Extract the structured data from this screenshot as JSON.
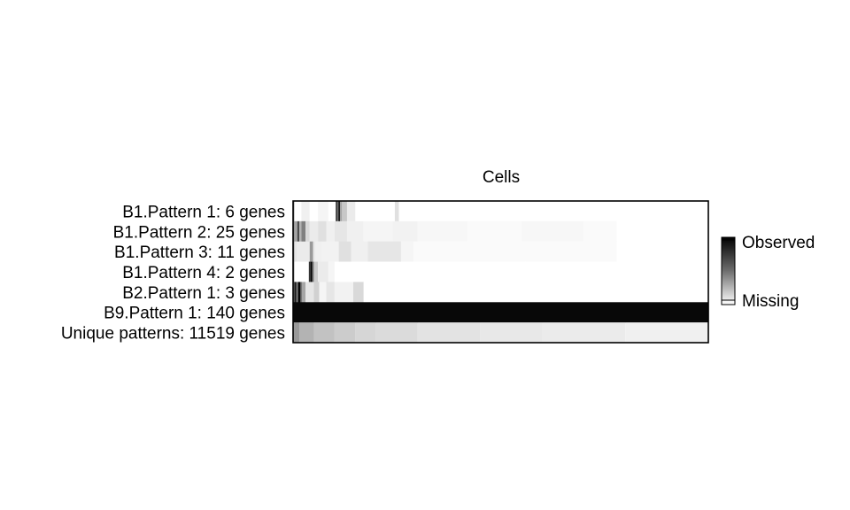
{
  "chart_data": {
    "type": "heatmap",
    "title": "",
    "xlabel": "Cells",
    "ylabel": "",
    "rows": [
      {
        "label": "B1.Pattern 1: 6 genes",
        "bands": [
          [
            0.0,
            0.003,
            0.55
          ],
          [
            0.003,
            0.02,
            0.0
          ],
          [
            0.02,
            0.04,
            0.06
          ],
          [
            0.04,
            0.06,
            0.0
          ],
          [
            0.06,
            0.085,
            0.04
          ],
          [
            0.085,
            0.103,
            0.0
          ],
          [
            0.103,
            0.106,
            0.95
          ],
          [
            0.106,
            0.109,
            0.55
          ],
          [
            0.109,
            0.113,
            0.9
          ],
          [
            0.113,
            0.118,
            0.35
          ],
          [
            0.118,
            0.13,
            0.22
          ],
          [
            0.13,
            0.15,
            0.08
          ],
          [
            0.15,
            0.245,
            0.0
          ],
          [
            0.245,
            0.255,
            0.12
          ],
          [
            0.255,
            1.0,
            0.0
          ]
        ]
      },
      {
        "label": "B1.Pattern 2: 25 genes",
        "bands": [
          [
            0.0,
            0.003,
            0.55
          ],
          [
            0.003,
            0.01,
            0.35
          ],
          [
            0.01,
            0.015,
            0.7
          ],
          [
            0.015,
            0.02,
            0.3
          ],
          [
            0.02,
            0.03,
            0.5
          ],
          [
            0.03,
            0.04,
            0.15
          ],
          [
            0.04,
            0.06,
            0.08
          ],
          [
            0.06,
            0.08,
            0.12
          ],
          [
            0.08,
            0.1,
            0.06
          ],
          [
            0.1,
            0.13,
            0.1
          ],
          [
            0.13,
            0.17,
            0.06
          ],
          [
            0.17,
            0.24,
            0.04
          ],
          [
            0.24,
            0.3,
            0.05
          ],
          [
            0.3,
            0.42,
            0.03
          ],
          [
            0.42,
            0.55,
            0.02
          ],
          [
            0.55,
            0.7,
            0.03
          ],
          [
            0.7,
            0.78,
            0.02
          ],
          [
            0.78,
            1.0,
            0.0
          ]
        ]
      },
      {
        "label": "B1.Pattern 3: 11 genes",
        "bands": [
          [
            0.0,
            0.003,
            0.55
          ],
          [
            0.003,
            0.01,
            0.1
          ],
          [
            0.01,
            0.04,
            0.08
          ],
          [
            0.04,
            0.048,
            0.4
          ],
          [
            0.048,
            0.053,
            0.1
          ],
          [
            0.053,
            0.07,
            0.06
          ],
          [
            0.07,
            0.11,
            0.05
          ],
          [
            0.11,
            0.14,
            0.12
          ],
          [
            0.14,
            0.18,
            0.06
          ],
          [
            0.18,
            0.26,
            0.1
          ],
          [
            0.26,
            0.29,
            0.04
          ],
          [
            0.29,
            0.56,
            0.02
          ],
          [
            0.56,
            0.78,
            0.02
          ],
          [
            0.78,
            1.0,
            0.0
          ]
        ]
      },
      {
        "label": "B1.Pattern 4: 2 genes",
        "bands": [
          [
            0.0,
            0.003,
            0.55
          ],
          [
            0.003,
            0.038,
            0.0
          ],
          [
            0.038,
            0.042,
            0.8
          ],
          [
            0.042,
            0.046,
            1.0
          ],
          [
            0.046,
            0.05,
            0.55
          ],
          [
            0.05,
            0.06,
            0.2
          ],
          [
            0.06,
            0.085,
            0.08
          ],
          [
            0.085,
            0.1,
            0.04
          ],
          [
            0.1,
            1.0,
            0.0
          ]
        ]
      },
      {
        "label": "B2.Pattern 1: 3 genes",
        "bands": [
          [
            0.0,
            0.003,
            0.55
          ],
          [
            0.003,
            0.008,
            0.9
          ],
          [
            0.008,
            0.012,
            0.55
          ],
          [
            0.012,
            0.017,
            1.0
          ],
          [
            0.017,
            0.021,
            0.65
          ],
          [
            0.021,
            0.03,
            0.35
          ],
          [
            0.03,
            0.05,
            0.1
          ],
          [
            0.05,
            0.063,
            0.18
          ],
          [
            0.063,
            0.08,
            0.04
          ],
          [
            0.08,
            0.1,
            0.1
          ],
          [
            0.1,
            0.145,
            0.05
          ],
          [
            0.145,
            0.17,
            0.15
          ],
          [
            0.17,
            1.0,
            0.0
          ]
        ]
      },
      {
        "label": "B9.Pattern 1: 140 genes",
        "bands": [
          [
            0.0,
            1.0,
            0.97
          ]
        ]
      },
      {
        "label": "Unique patterns: 11519 genes",
        "bands": [
          [
            0.0,
            0.015,
            0.4
          ],
          [
            0.015,
            0.05,
            0.3
          ],
          [
            0.05,
            0.1,
            0.24
          ],
          [
            0.1,
            0.15,
            0.2
          ],
          [
            0.15,
            0.2,
            0.16
          ],
          [
            0.2,
            0.3,
            0.14
          ],
          [
            0.3,
            0.45,
            0.11
          ],
          [
            0.45,
            0.6,
            0.09
          ],
          [
            0.6,
            0.8,
            0.08
          ],
          [
            0.8,
            1.0,
            0.06
          ]
        ]
      }
    ],
    "color_scale": {
      "low": "#ffffff",
      "high": "#000000",
      "low_label": "Missing",
      "high_label": "Observed"
    },
    "legend_position": "right",
    "grid": false
  }
}
